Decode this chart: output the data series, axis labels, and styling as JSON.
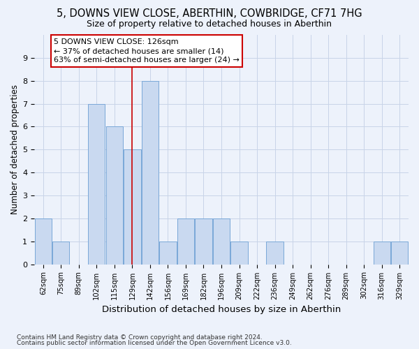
{
  "title1": "5, DOWNS VIEW CLOSE, ABERTHIN, COWBRIDGE, CF71 7HG",
  "title2": "Size of property relative to detached houses in Aberthin",
  "xlabel": "Distribution of detached houses by size in Aberthin",
  "ylabel": "Number of detached properties",
  "bins": [
    "62sqm",
    "75sqm",
    "89sqm",
    "102sqm",
    "115sqm",
    "129sqm",
    "142sqm",
    "156sqm",
    "169sqm",
    "182sqm",
    "196sqm",
    "209sqm",
    "222sqm",
    "236sqm",
    "249sqm",
    "262sqm",
    "276sqm",
    "289sqm",
    "302sqm",
    "316sqm",
    "329sqm"
  ],
  "values": [
    2,
    1,
    0,
    7,
    6,
    5,
    8,
    1,
    2,
    2,
    2,
    1,
    0,
    1,
    0,
    0,
    0,
    0,
    0,
    1,
    1
  ],
  "bar_color": "#c9d9f0",
  "bar_edge_color": "#7aa8d8",
  "grid_color": "#c8d4e8",
  "ref_line_color": "#cc0000",
  "annotation_line1": "5 DOWNS VIEW CLOSE: 126sqm",
  "annotation_line2": "← 37% of detached houses are smaller (14)",
  "annotation_line3": "63% of semi-detached houses are larger (24) →",
  "annotation_box_color": "#cc0000",
  "annotation_box_fill": "white",
  "ylim": [
    0,
    10
  ],
  "yticks": [
    0,
    1,
    2,
    3,
    4,
    5,
    6,
    7,
    8,
    9,
    10
  ],
  "footer1": "Contains HM Land Registry data © Crown copyright and database right 2024.",
  "footer2": "Contains public sector information licensed under the Open Government Licence v3.0.",
  "background_color": "#edf2fb"
}
